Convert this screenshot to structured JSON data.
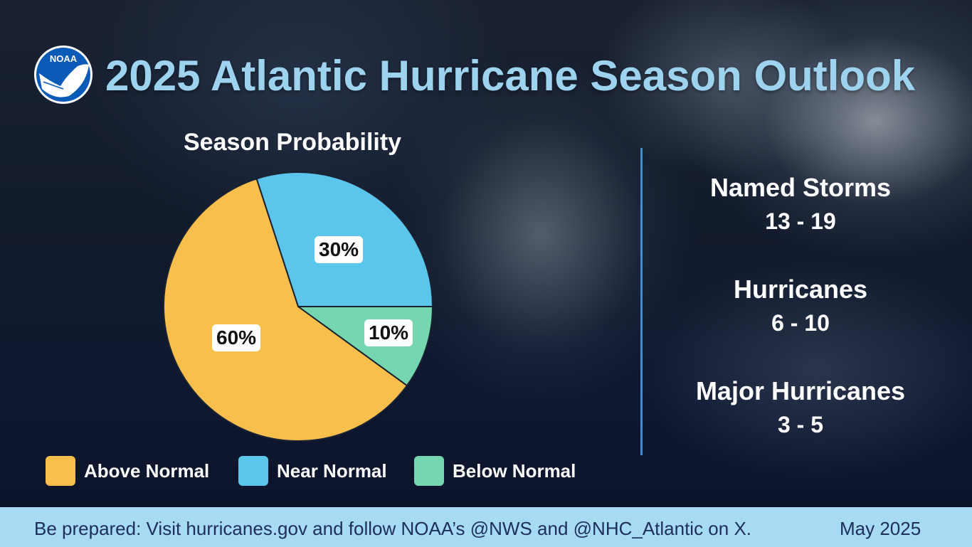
{
  "header": {
    "logo_text": "NOAA",
    "title": "2025 Atlantic Hurricane Season Outlook"
  },
  "chart_data": {
    "type": "pie",
    "title": "Season Probability",
    "slices": [
      {
        "label": "Above Normal",
        "value": 60,
        "display": "60%",
        "color": "#f9bf4c"
      },
      {
        "label": "Near Normal",
        "value": 30,
        "display": "30%",
        "color": "#5bc5ec"
      },
      {
        "label": "Below Normal",
        "value": 10,
        "display": "10%",
        "color": "#74d7b0"
      }
    ],
    "legend_position": "bottom"
  },
  "stats": [
    {
      "label": "Named Storms",
      "value": "13 - 19"
    },
    {
      "label": "Hurricanes",
      "value": "6 - 10"
    },
    {
      "label": "Major Hurricanes",
      "value": "3 - 5"
    }
  ],
  "footer": {
    "text": "Be prepared: Visit hurricanes.gov and follow NOAA’s @NWS and @NHC_Atlantic on X.",
    "date": "May 2025"
  },
  "colors": {
    "title": "#9dd3ef",
    "footer_bg": "#a7daf3",
    "footer_text": "#1d2f57",
    "divider": "#3f8fd0"
  }
}
